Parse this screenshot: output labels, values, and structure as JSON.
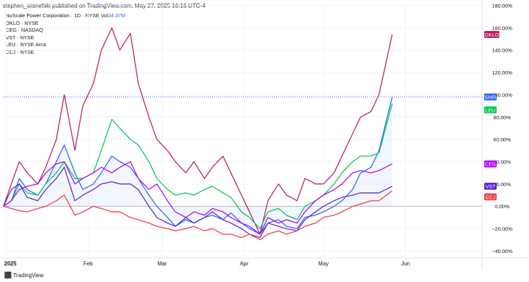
{
  "header": {
    "publisher_text": "stephen_wisnefski published on TradingView.com, May 27, 2025 16:16 UTC-4"
  },
  "legend": {
    "main_title": "NuScale Power Corporation · 1D · NYSE",
    "vol_label": "Vol",
    "vol_value": "34.37M",
    "items": [
      "OKLO · NYSE",
      "CEG · NASDAQ",
      "VST · NYSE",
      "LEU · NYSE Arca",
      "CCJ · NYSE"
    ]
  },
  "footer": {
    "brand": "TradingView",
    "logo": "tradingview-logo-icon"
  },
  "chart_data": {
    "type": "line",
    "x_range": [
      "2024-12-31",
      "2025-06-30"
    ],
    "ylim": [
      -45,
      180
    ],
    "y_unit": "%",
    "reference_line": 98,
    "x_ticks": [
      {
        "label": "2025",
        "date": "2025-01-01",
        "bold": true
      },
      {
        "label": "Feb",
        "date": "2025-02-01"
      },
      {
        "label": "Mar",
        "date": "2025-03-01"
      },
      {
        "label": "Apr",
        "date": "2025-04-01"
      },
      {
        "label": "May",
        "date": "2025-05-01"
      },
      {
        "label": "Jun",
        "date": "2025-06-01"
      }
    ],
    "y_ticks": [
      {
        "value": 180,
        "label": "180.00%"
      },
      {
        "value": 160,
        "label": "160.00%"
      },
      {
        "value": 140,
        "label": "140.00%"
      },
      {
        "value": 120,
        "label": "120.00%"
      },
      {
        "value": 100,
        "label": "100.00%"
      },
      {
        "value": 80,
        "label": "80.00%"
      },
      {
        "value": 60,
        "label": "60.00%"
      },
      {
        "value": 40,
        "label": "40.00%"
      },
      {
        "value": 20,
        "label": "20.00%"
      },
      {
        "value": 0,
        "label": "0.00%"
      },
      {
        "value": -20,
        "label": "−20.00%"
      },
      {
        "value": -40,
        "label": "−40.00%"
      }
    ],
    "series": [
      {
        "name": "SMR",
        "color": "#2962ff",
        "end_label": "SMR",
        "end_value": 98,
        "fill": true,
        "points": [
          [
            "2024-12-31",
            0
          ],
          [
            "2025-01-03",
            5
          ],
          [
            "2025-01-06",
            25
          ],
          [
            "2025-01-09",
            15
          ],
          [
            "2025-01-13",
            10
          ],
          [
            "2025-01-16",
            20
          ],
          [
            "2025-01-20",
            40
          ],
          [
            "2025-01-23",
            55
          ],
          [
            "2025-01-27",
            30
          ],
          [
            "2025-01-30",
            15
          ],
          [
            "2025-02-03",
            20
          ],
          [
            "2025-02-06",
            30
          ],
          [
            "2025-02-10",
            45
          ],
          [
            "2025-02-13",
            40
          ],
          [
            "2025-02-17",
            35
          ],
          [
            "2025-02-20",
            25
          ],
          [
            "2025-02-24",
            10
          ],
          [
            "2025-02-27",
            0
          ],
          [
            "2025-03-03",
            -10
          ],
          [
            "2025-03-06",
            -18
          ],
          [
            "2025-03-10",
            -12
          ],
          [
            "2025-03-13",
            -15
          ],
          [
            "2025-03-17",
            -10
          ],
          [
            "2025-03-20",
            -8
          ],
          [
            "2025-03-24",
            -12
          ],
          [
            "2025-03-27",
            -6
          ],
          [
            "2025-03-31",
            -15
          ],
          [
            "2025-04-03",
            -20
          ],
          [
            "2025-04-07",
            -25
          ],
          [
            "2025-04-10",
            -15
          ],
          [
            "2025-04-14",
            -12
          ],
          [
            "2025-04-17",
            -18
          ],
          [
            "2025-04-21",
            -20
          ],
          [
            "2025-04-24",
            -10
          ],
          [
            "2025-04-28",
            -8
          ],
          [
            "2025-05-01",
            -5
          ],
          [
            "2025-05-05",
            0
          ],
          [
            "2025-05-08",
            5
          ],
          [
            "2025-05-12",
            15
          ],
          [
            "2025-05-15",
            30
          ],
          [
            "2025-05-19",
            35
          ],
          [
            "2025-05-22",
            50
          ],
          [
            "2025-05-27",
            98
          ]
        ]
      },
      {
        "name": "OKLO",
        "color": "#c2185b",
        "end_label": "OKLO",
        "end_value": 154,
        "points": [
          [
            "2024-12-31",
            0
          ],
          [
            "2025-01-03",
            20
          ],
          [
            "2025-01-06",
            40
          ],
          [
            "2025-01-09",
            30
          ],
          [
            "2025-01-13",
            20
          ],
          [
            "2025-01-16",
            35
          ],
          [
            "2025-01-20",
            60
          ],
          [
            "2025-01-23",
            100
          ],
          [
            "2025-01-27",
            50
          ],
          [
            "2025-01-30",
            90
          ],
          [
            "2025-02-03",
            110
          ],
          [
            "2025-02-06",
            140
          ],
          [
            "2025-02-10",
            160
          ],
          [
            "2025-02-13",
            140
          ],
          [
            "2025-02-17",
            155
          ],
          [
            "2025-02-20",
            110
          ],
          [
            "2025-02-24",
            80
          ],
          [
            "2025-02-27",
            60
          ],
          [
            "2025-03-03",
            50
          ],
          [
            "2025-03-06",
            40
          ],
          [
            "2025-03-10",
            30
          ],
          [
            "2025-03-13",
            40
          ],
          [
            "2025-03-17",
            25
          ],
          [
            "2025-03-20",
            35
          ],
          [
            "2025-03-24",
            45
          ],
          [
            "2025-03-27",
            30
          ],
          [
            "2025-03-31",
            10
          ],
          [
            "2025-04-03",
            -5
          ],
          [
            "2025-04-07",
            -25
          ],
          [
            "2025-04-10",
            5
          ],
          [
            "2025-04-14",
            20
          ],
          [
            "2025-04-17",
            10
          ],
          [
            "2025-04-21",
            5
          ],
          [
            "2025-04-24",
            25
          ],
          [
            "2025-04-28",
            20
          ],
          [
            "2025-05-01",
            20
          ],
          [
            "2025-05-05",
            30
          ],
          [
            "2025-05-08",
            45
          ],
          [
            "2025-05-12",
            65
          ],
          [
            "2025-05-15",
            80
          ],
          [
            "2025-05-19",
            85
          ],
          [
            "2025-05-22",
            100
          ],
          [
            "2025-05-27",
            154
          ]
        ]
      },
      {
        "name": "LEU",
        "color": "#00c853",
        "end_label": "LEU",
        "end_value": 92,
        "points": [
          [
            "2024-12-31",
            0
          ],
          [
            "2025-01-03",
            5
          ],
          [
            "2025-01-06",
            20
          ],
          [
            "2025-01-09",
            12
          ],
          [
            "2025-01-13",
            10
          ],
          [
            "2025-01-16",
            20
          ],
          [
            "2025-01-20",
            30
          ],
          [
            "2025-01-23",
            40
          ],
          [
            "2025-01-27",
            25
          ],
          [
            "2025-01-30",
            25
          ],
          [
            "2025-02-03",
            30
          ],
          [
            "2025-02-06",
            50
          ],
          [
            "2025-02-10",
            78
          ],
          [
            "2025-02-13",
            70
          ],
          [
            "2025-02-17",
            60
          ],
          [
            "2025-02-20",
            55
          ],
          [
            "2025-02-24",
            40
          ],
          [
            "2025-02-27",
            25
          ],
          [
            "2025-03-03",
            15
          ],
          [
            "2025-03-06",
            10
          ],
          [
            "2025-03-10",
            12
          ],
          [
            "2025-03-13",
            10
          ],
          [
            "2025-03-17",
            15
          ],
          [
            "2025-03-20",
            18
          ],
          [
            "2025-03-24",
            12
          ],
          [
            "2025-03-27",
            8
          ],
          [
            "2025-03-31",
            -5
          ],
          [
            "2025-04-03",
            -10
          ],
          [
            "2025-04-07",
            -20
          ],
          [
            "2025-04-10",
            -5
          ],
          [
            "2025-04-14",
            -2
          ],
          [
            "2025-04-17",
            -8
          ],
          [
            "2025-04-21",
            -12
          ],
          [
            "2025-04-24",
            0
          ],
          [
            "2025-04-28",
            5
          ],
          [
            "2025-05-01",
            10
          ],
          [
            "2025-05-05",
            20
          ],
          [
            "2025-05-08",
            30
          ],
          [
            "2025-05-12",
            40
          ],
          [
            "2025-05-15",
            45
          ],
          [
            "2025-05-19",
            45
          ],
          [
            "2025-05-22",
            48
          ],
          [
            "2025-05-27",
            92
          ]
        ]
      },
      {
        "name": "CEG",
        "color": "#aa00ff",
        "end_label": "CEG",
        "end_value": 38,
        "points": [
          [
            "2024-12-31",
            0
          ],
          [
            "2025-01-03",
            5
          ],
          [
            "2025-01-06",
            15
          ],
          [
            "2025-01-09",
            18
          ],
          [
            "2025-01-13",
            20
          ],
          [
            "2025-01-16",
            30
          ],
          [
            "2025-01-20",
            38
          ],
          [
            "2025-01-23",
            40
          ],
          [
            "2025-01-27",
            20
          ],
          [
            "2025-01-30",
            25
          ],
          [
            "2025-02-03",
            30
          ],
          [
            "2025-02-06",
            35
          ],
          [
            "2025-02-10",
            30
          ],
          [
            "2025-02-13",
            35
          ],
          [
            "2025-02-17",
            40
          ],
          [
            "2025-02-20",
            25
          ],
          [
            "2025-02-24",
            15
          ],
          [
            "2025-02-27",
            20
          ],
          [
            "2025-03-03",
            5
          ],
          [
            "2025-03-06",
            -5
          ],
          [
            "2025-03-10",
            -10
          ],
          [
            "2025-03-13",
            -5
          ],
          [
            "2025-03-17",
            -8
          ],
          [
            "2025-03-20",
            -2
          ],
          [
            "2025-03-24",
            -5
          ],
          [
            "2025-03-27",
            -10
          ],
          [
            "2025-03-31",
            -15
          ],
          [
            "2025-04-03",
            -18
          ],
          [
            "2025-04-07",
            -25
          ],
          [
            "2025-04-10",
            -10
          ],
          [
            "2025-04-14",
            -15
          ],
          [
            "2025-04-17",
            -12
          ],
          [
            "2025-04-21",
            -15
          ],
          [
            "2025-04-24",
            -5
          ],
          [
            "2025-04-28",
            5
          ],
          [
            "2025-05-01",
            10
          ],
          [
            "2025-05-05",
            15
          ],
          [
            "2025-05-08",
            20
          ],
          [
            "2025-05-12",
            30
          ],
          [
            "2025-05-15",
            32
          ],
          [
            "2025-05-19",
            30
          ],
          [
            "2025-05-22",
            32
          ],
          [
            "2025-05-27",
            38
          ]
        ]
      },
      {
        "name": "VST",
        "color": "#5d22d9",
        "end_label": "VST",
        "end_value": 18,
        "points": [
          [
            "2024-12-31",
            0
          ],
          [
            "2025-01-03",
            15
          ],
          [
            "2025-01-06",
            20
          ],
          [
            "2025-01-09",
            8
          ],
          [
            "2025-01-13",
            5
          ],
          [
            "2025-01-16",
            15
          ],
          [
            "2025-01-20",
            25
          ],
          [
            "2025-01-23",
            35
          ],
          [
            "2025-01-27",
            5
          ],
          [
            "2025-01-30",
            10
          ],
          [
            "2025-02-03",
            15
          ],
          [
            "2025-02-06",
            20
          ],
          [
            "2025-02-10",
            22
          ],
          [
            "2025-02-13",
            20
          ],
          [
            "2025-02-17",
            20
          ],
          [
            "2025-02-20",
            15
          ],
          [
            "2025-02-24",
            0
          ],
          [
            "2025-02-27",
            -10
          ],
          [
            "2025-03-03",
            -15
          ],
          [
            "2025-03-06",
            -18
          ],
          [
            "2025-03-10",
            -10
          ],
          [
            "2025-03-13",
            -15
          ],
          [
            "2025-03-17",
            -10
          ],
          [
            "2025-03-20",
            -5
          ],
          [
            "2025-03-24",
            -12
          ],
          [
            "2025-03-27",
            -15
          ],
          [
            "2025-03-31",
            -20
          ],
          [
            "2025-04-03",
            -25
          ],
          [
            "2025-04-07",
            -28
          ],
          [
            "2025-04-10",
            -15
          ],
          [
            "2025-04-14",
            -18
          ],
          [
            "2025-04-17",
            -20
          ],
          [
            "2025-04-21",
            -22
          ],
          [
            "2025-04-24",
            -12
          ],
          [
            "2025-04-28",
            -5
          ],
          [
            "2025-05-01",
            0
          ],
          [
            "2025-05-05",
            5
          ],
          [
            "2025-05-08",
            8
          ],
          [
            "2025-05-12",
            10
          ],
          [
            "2025-05-15",
            12
          ],
          [
            "2025-05-19",
            12
          ],
          [
            "2025-05-22",
            12
          ],
          [
            "2025-05-27",
            18
          ]
        ]
      },
      {
        "name": "CCJ",
        "color": "#f23645",
        "end_label": "CCJ",
        "end_value": 14,
        "points": [
          [
            "2024-12-31",
            0
          ],
          [
            "2025-01-03",
            -2
          ],
          [
            "2025-01-06",
            -4
          ],
          [
            "2025-01-09",
            -5
          ],
          [
            "2025-01-13",
            -2
          ],
          [
            "2025-01-16",
            0
          ],
          [
            "2025-01-20",
            5
          ],
          [
            "2025-01-23",
            10
          ],
          [
            "2025-01-27",
            -8
          ],
          [
            "2025-01-30",
            -5
          ],
          [
            "2025-02-03",
            0
          ],
          [
            "2025-02-06",
            -2
          ],
          [
            "2025-02-10",
            -5
          ],
          [
            "2025-02-13",
            -5
          ],
          [
            "2025-02-17",
            -10
          ],
          [
            "2025-02-20",
            -12
          ],
          [
            "2025-02-24",
            -15
          ],
          [
            "2025-02-27",
            -18
          ],
          [
            "2025-03-03",
            -20
          ],
          [
            "2025-03-06",
            -22
          ],
          [
            "2025-03-10",
            -20
          ],
          [
            "2025-03-13",
            -18
          ],
          [
            "2025-03-17",
            -22
          ],
          [
            "2025-03-20",
            -20
          ],
          [
            "2025-03-24",
            -25
          ],
          [
            "2025-03-27",
            -25
          ],
          [
            "2025-03-31",
            -28
          ],
          [
            "2025-04-03",
            -25
          ],
          [
            "2025-04-07",
            -30
          ],
          [
            "2025-04-10",
            -25
          ],
          [
            "2025-04-14",
            -22
          ],
          [
            "2025-04-17",
            -25
          ],
          [
            "2025-04-21",
            -22
          ],
          [
            "2025-04-24",
            -18
          ],
          [
            "2025-04-28",
            -15
          ],
          [
            "2025-05-01",
            -10
          ],
          [
            "2025-05-05",
            -8
          ],
          [
            "2025-05-08",
            -5
          ],
          [
            "2025-05-12",
            0
          ],
          [
            "2025-05-15",
            2
          ],
          [
            "2025-05-19",
            5
          ],
          [
            "2025-05-22",
            5
          ],
          [
            "2025-05-27",
            14
          ]
        ]
      }
    ]
  }
}
